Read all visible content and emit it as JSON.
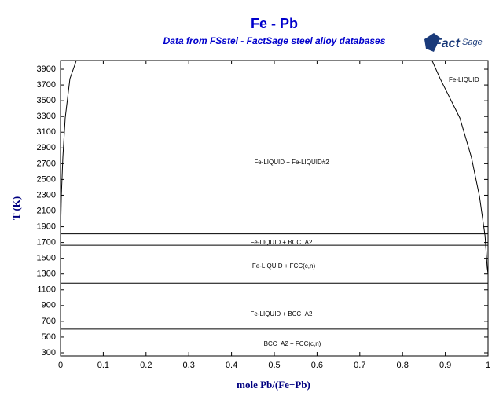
{
  "chart_data": {
    "type": "line",
    "title": "Fe - Pb",
    "subtitle": "Data from FSstel - FactSage steel alloy databases",
    "logo": {
      "left": "Fact",
      "right": "Sage"
    },
    "x_label": "mole Pb/(Fe+Pb)",
    "y_label": "T (K)",
    "xlim": [
      0,
      1
    ],
    "xticks": [
      0,
      0.1,
      0.2,
      0.3,
      0.4,
      0.5,
      0.6,
      0.7,
      0.8,
      0.9,
      1
    ],
    "ylim": [
      260,
      4010
    ],
    "yticks": [
      300,
      500,
      700,
      900,
      1100,
      1300,
      1500,
      1700,
      1900,
      2100,
      2300,
      2500,
      2700,
      2900,
      3100,
      3300,
      3500,
      3700,
      3900
    ],
    "series": [
      {
        "color": "#000000",
        "x": [
          0,
          0.002,
          0.0055,
          0.011,
          0.022,
          0.037
        ],
        "values": [
          1809,
          2300,
          2783,
          3282,
          3780,
          4010
        ]
      },
      {
        "color": "#000000",
        "x": [
          0.869,
          0.888,
          0.934,
          0.961,
          0.98,
          0.993,
          0.998,
          1
        ],
        "values": [
          4010,
          3780,
          3282,
          2783,
          2285,
          1786,
          1387,
          1300
        ]
      },
      {
        "color": "#000000",
        "x": [
          0,
          1
        ],
        "values": [
          1809,
          1809
        ]
      },
      {
        "color": "#000000",
        "x": [
          0,
          1
        ],
        "values": [
          1665,
          1665
        ]
      },
      {
        "color": "#000000",
        "x": [
          0,
          1
        ],
        "values": [
          1185,
          1185
        ]
      },
      {
        "color": "#000000",
        "x": [
          0,
          1
        ],
        "values": [
          600,
          600
        ]
      }
    ],
    "annotations": [
      "Fe-LIQUID",
      "Fe-LIQUID + Fe-LIQUID#2",
      "Fe-LIQUID + BCC_A2",
      "Fe-LIQUID + FCC(c,n)",
      "Fe-LIQUID + BCC_A2",
      "BCC_A2 + FCC(c,n)"
    ]
  }
}
